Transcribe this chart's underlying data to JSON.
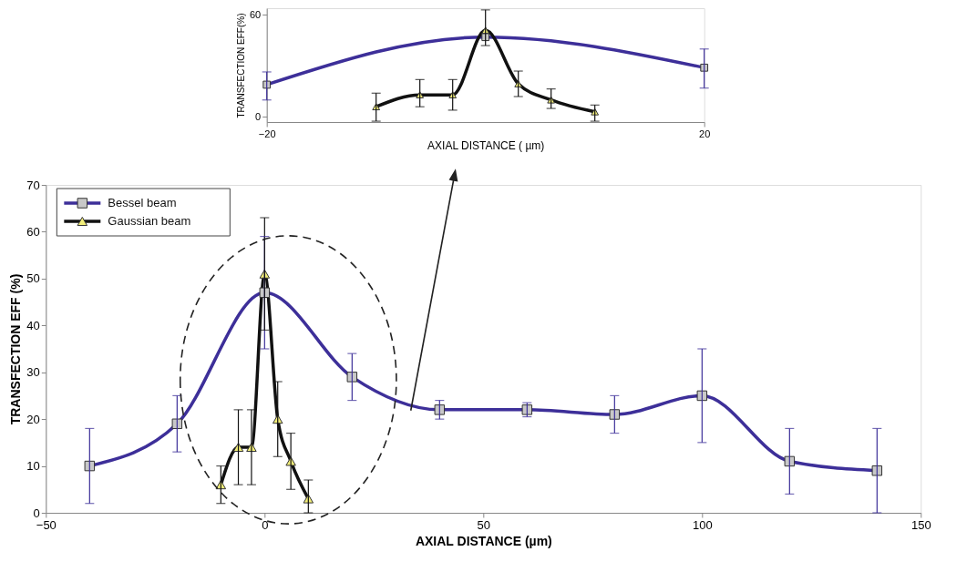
{
  "chart_data": [
    {
      "type": "line",
      "xlabel": "AXIAL DISTANCE (µm)",
      "ylabel": "TRANSFECTION EFF (%)",
      "xlim": [
        -50,
        150
      ],
      "xticks": [
        -50,
        0,
        50,
        100,
        150
      ],
      "ylim": [
        0,
        70
      ],
      "yticks": [
        0,
        10,
        20,
        30,
        40,
        50,
        60,
        70
      ],
      "legend": "top left",
      "grid": false,
      "line_style": "solid",
      "series": [
        {
          "name": "Bessel beam",
          "color": "#3d2f99",
          "marker": "square",
          "x": [
            -40,
            -20,
            0,
            20,
            40,
            60,
            80,
            100,
            120,
            140
          ],
          "values": [
            10,
            19,
            47,
            29,
            22,
            22,
            21,
            25,
            11,
            9
          ],
          "errors": [
            [
              2,
              18
            ],
            [
              13,
              25
            ],
            [
              35,
              59
            ],
            [
              24,
              34
            ],
            [
              20,
              24
            ],
            [
              20.5,
              23.5
            ],
            [
              17,
              25
            ],
            [
              15,
              35
            ],
            [
              4,
              18
            ],
            [
              0,
              18
            ]
          ]
        },
        {
          "name": "Gaussian beam",
          "color": "#111111",
          "marker": "triangle",
          "x": [
            -10,
            -6,
            -3,
            0,
            3,
            6,
            10
          ],
          "values": [
            6,
            14,
            14,
            51,
            20,
            11,
            3
          ],
          "errors": [
            [
              2,
              10
            ],
            [
              6,
              22
            ],
            [
              6,
              22
            ],
            [
              39,
              63
            ],
            [
              12,
              28
            ],
            [
              5,
              17
            ],
            [
              0,
              7
            ]
          ]
        }
      ]
    },
    {
      "type": "line",
      "xlabel": "AXIAL DISTANCE ( µm)",
      "ylabel": "TRANSFECTION EFF(%)",
      "xlim": [
        -20,
        20
      ],
      "xticks": [
        -20,
        20
      ],
      "ylim": [
        -3,
        64
      ],
      "yticks": [
        0,
        60
      ],
      "grid": false,
      "line_style": "solid",
      "series": [
        {
          "color": "#3d2f99",
          "marker": "square",
          "x": [
            -20,
            0,
            20
          ],
          "values": [
            19,
            47,
            29
          ],
          "errors": [
            [
              10,
              26.5
            ],
            null,
            [
              17,
              40
            ]
          ]
        },
        {
          "color": "#111111",
          "marker": "triangle",
          "x": [
            -10,
            -6,
            -3,
            0,
            3,
            6,
            10
          ],
          "values": [
            6,
            13,
            13,
            51,
            19.5,
            10,
            3
          ],
          "errors": [
            [
              -2.5,
              14
            ],
            [
              6,
              22
            ],
            [
              4,
              22
            ],
            [
              42,
              63
            ],
            [
              12,
              27
            ],
            [
              5,
              16.5
            ],
            [
              -2.5,
              7
            ]
          ]
        }
      ]
    }
  ]
}
